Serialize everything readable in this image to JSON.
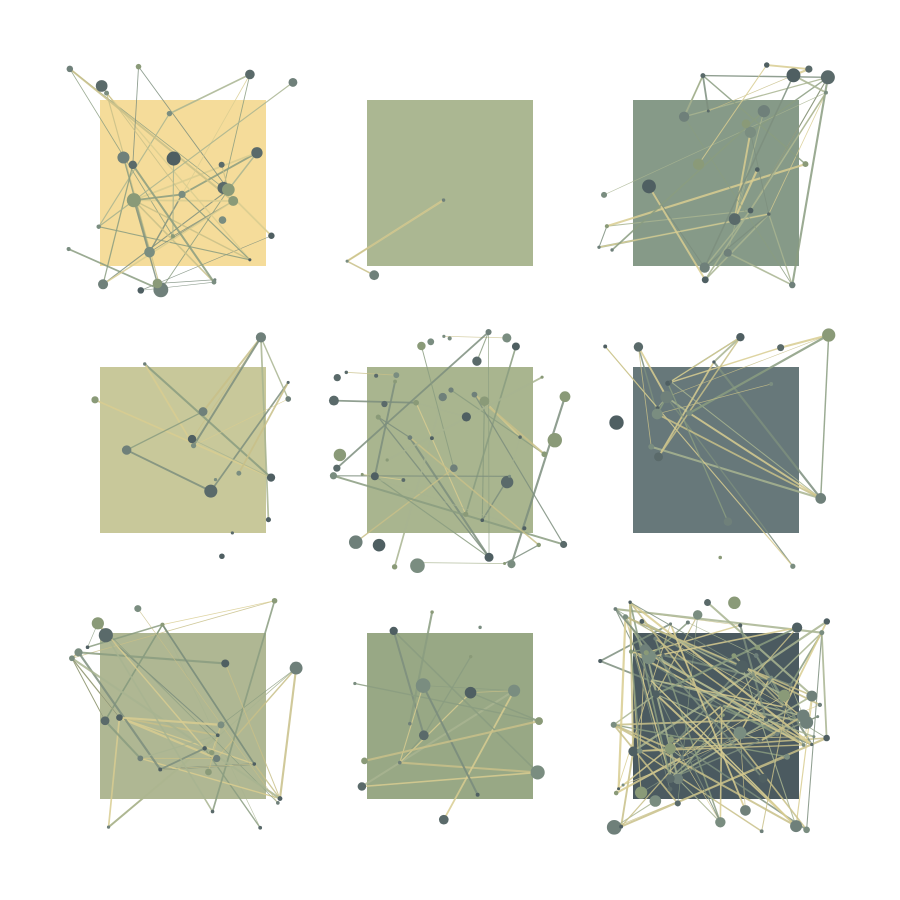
{
  "panels": [
    {
      "background": "#f5dc9a",
      "nodes": 30,
      "edges": 45
    },
    {
      "background": "#abb792",
      "nodes": 3,
      "edges": 3
    },
    {
      "background": "#869a88",
      "nodes": 26,
      "edges": 40
    },
    {
      "background": "#c8c89a",
      "nodes": 16,
      "edges": 14
    },
    {
      "background": "#a9b58f",
      "nodes": 52,
      "edges": 34
    },
    {
      "background": "#67787a",
      "nodes": 20,
      "edges": 30
    },
    {
      "background": "#afb793",
      "nodes": 26,
      "edges": 50
    },
    {
      "background": "#98a885",
      "nodes": 17,
      "edges": 20
    },
    {
      "background": "#4b5a60",
      "nodes": 72,
      "edges": 110
    }
  ],
  "node_colors": [
    "#5a6a6a",
    "#7a8d80",
    "#8a9a78",
    "#4f5f62",
    "#6f807a"
  ],
  "edge_colors": [
    "#c8c088",
    "#8a9c80",
    "#a8b490",
    "#d8cc90",
    "#7c8e7e"
  ]
}
